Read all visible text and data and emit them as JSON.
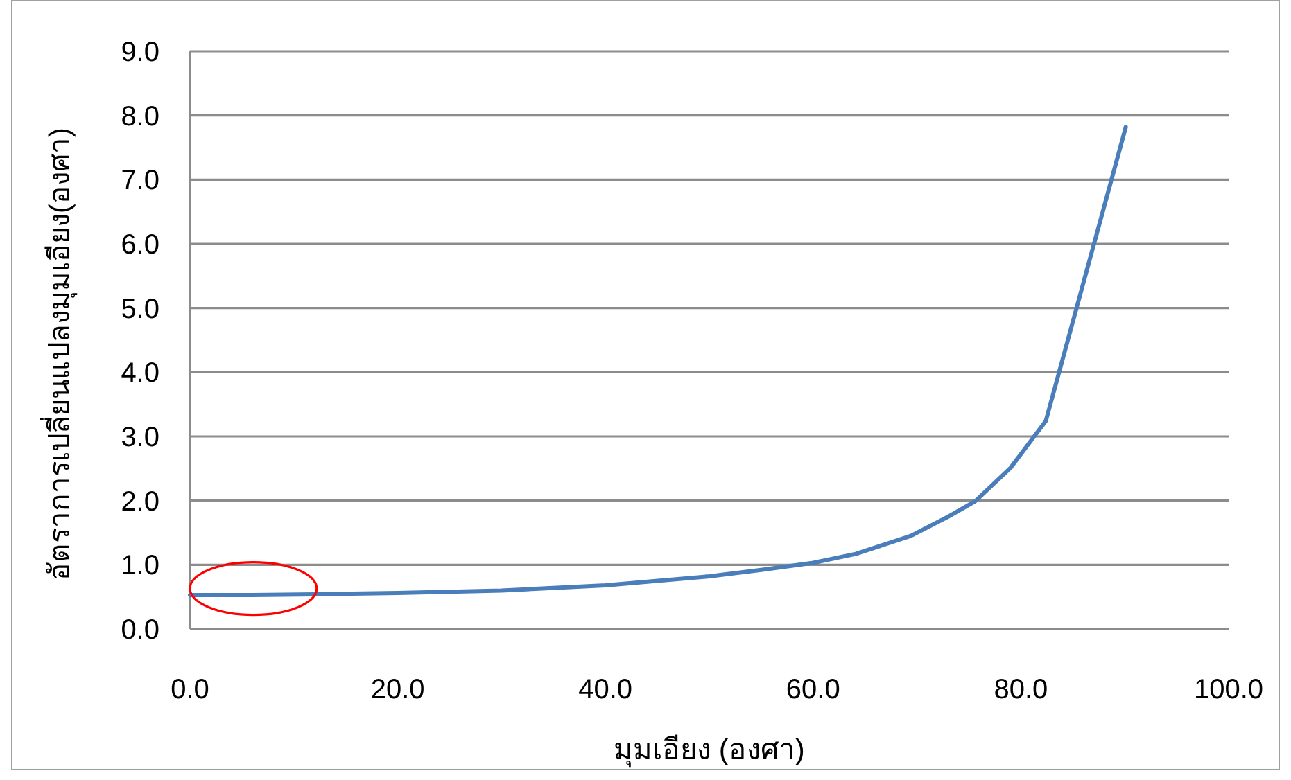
{
  "chart_data": {
    "type": "line",
    "xlabel": "มุมเอียง (องศา)",
    "ylabel": "อัตราการเปลี่ยนแปลงมุมเอียง(องศา)",
    "x": [
      0,
      6,
      12,
      20,
      30,
      40,
      50,
      55,
      60,
      64.1,
      69.4,
      73,
      75.6,
      79,
      82.4,
      90.1
    ],
    "values": [
      0.53,
      0.53,
      0.54,
      0.56,
      0.6,
      0.68,
      0.82,
      0.92,
      1.03,
      1.17,
      1.45,
      1.75,
      1.99,
      2.51,
      3.24,
      7.82
    ],
    "color": "#4a7ebb",
    "xlim": [
      0,
      100
    ],
    "ylim": [
      0,
      9
    ],
    "xticks": [
      {
        "value": 0,
        "label": "0.0"
      },
      {
        "value": 20,
        "label": "20.0"
      },
      {
        "value": 40,
        "label": "40.0"
      },
      {
        "value": 60,
        "label": "60.0"
      },
      {
        "value": 80,
        "label": "80.0"
      },
      {
        "value": 100,
        "label": "100.0"
      }
    ],
    "yticks": [
      {
        "value": 0,
        "label": "0.0"
      },
      {
        "value": 1,
        "label": "1.0"
      },
      {
        "value": 2,
        "label": "2.0"
      },
      {
        "value": 3,
        "label": "3.0"
      },
      {
        "value": 4,
        "label": "4.0"
      },
      {
        "value": 5,
        "label": "5.0"
      },
      {
        "value": 6,
        "label": "6.0"
      },
      {
        "value": 7,
        "label": "7.0"
      },
      {
        "value": 8,
        "label": "8.0"
      },
      {
        "value": 9,
        "label": "9.0"
      }
    ],
    "grid": "y"
  }
}
